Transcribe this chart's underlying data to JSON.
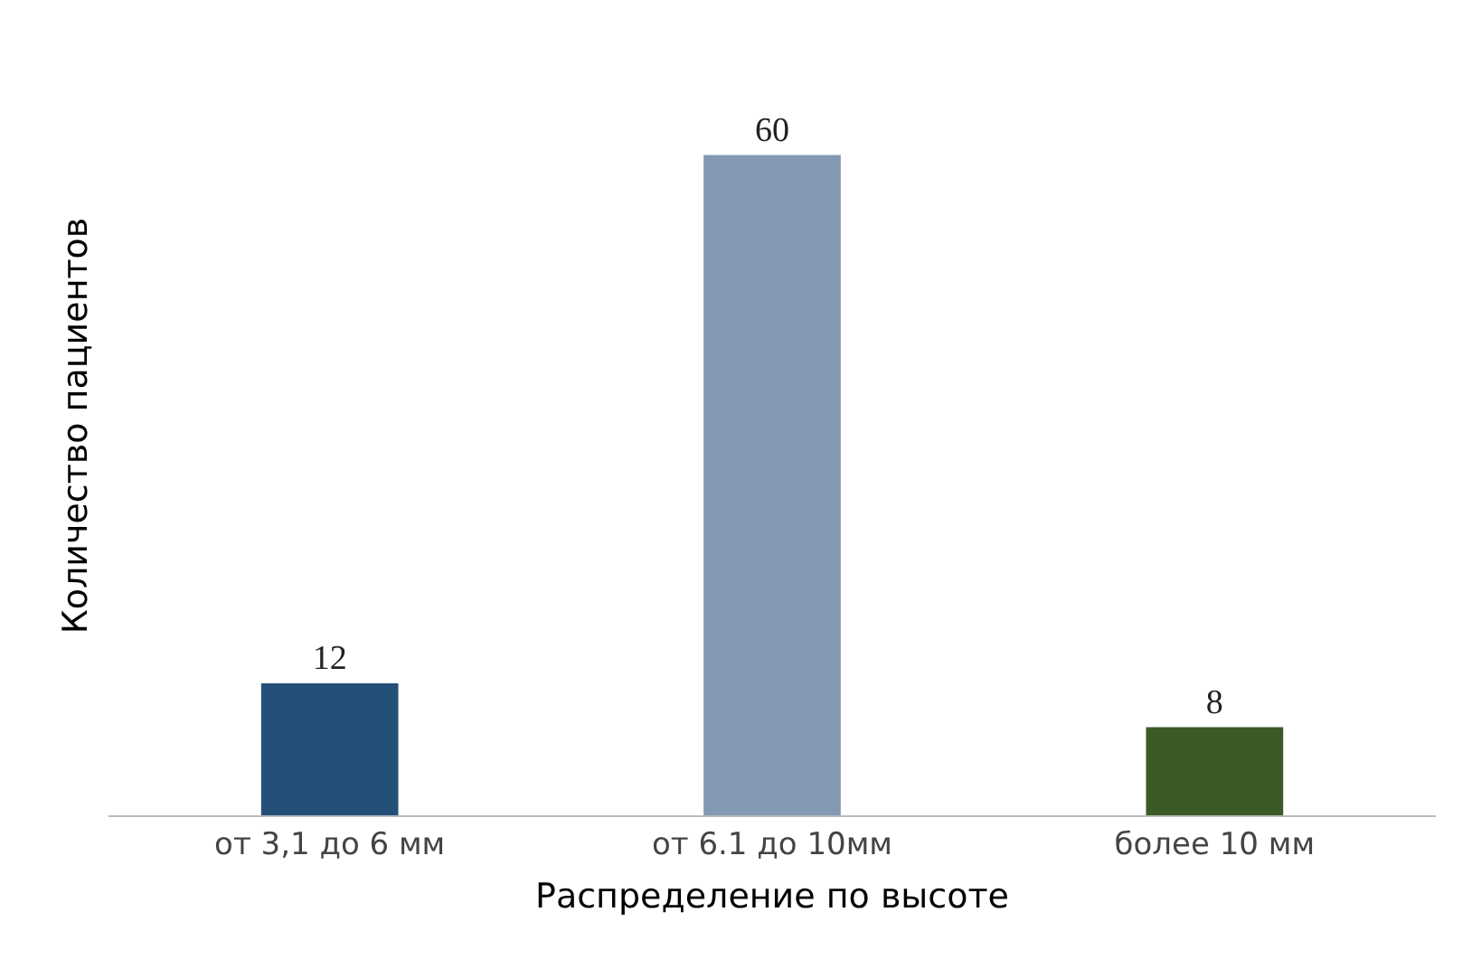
{
  "chart_data": {
    "type": "bar",
    "xlabel": "Распределение по высоте",
    "ylabel": "Количество пациентов",
    "categories": [
      "от 3,1 до 6 мм",
      "от 6.1 до 10мм",
      "более 10 мм"
    ],
    "values": [
      12,
      60,
      8
    ],
    "colors": [
      "#245078",
      "#8499b2",
      "#3b5a26"
    ],
    "data_labels": true
  }
}
